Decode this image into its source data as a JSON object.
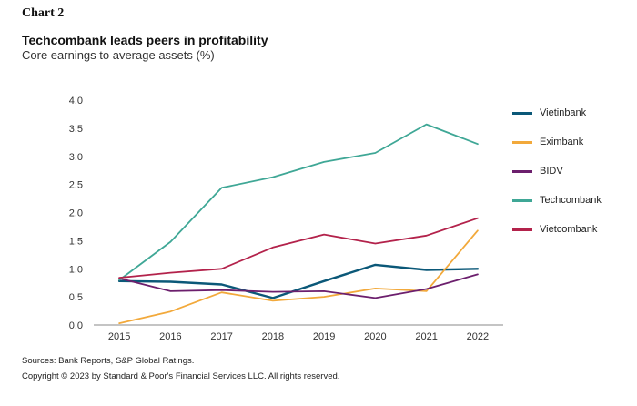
{
  "chart_label": "Chart 2",
  "footer": {
    "sources": "Sources: Bank Reports, S&P Global Ratings.",
    "copyright": "Copyright © 2023 by Standard & Poor's Financial Services LLC. All rights reserved."
  },
  "chart_data": {
    "type": "line",
    "title": "Techcombank leads peers in profitability",
    "subtitle": "Core earnings to average assets (%)",
    "xlabel": "",
    "ylabel": "",
    "x": [
      "2015",
      "2016",
      "2017",
      "2018",
      "2019",
      "2020",
      "2021",
      "2022"
    ],
    "ylim": [
      0,
      4.0
    ],
    "yticks": [
      "0.0",
      "0.5",
      "1.0",
      "1.5",
      "2.0",
      "2.5",
      "3.0",
      "3.5",
      "4.0"
    ],
    "grid": false,
    "legend_position": "right",
    "series": [
      {
        "name": "Vietinbank",
        "color": "#0b5878",
        "values": [
          0.78,
          0.77,
          0.72,
          0.48,
          0.78,
          1.07,
          0.98,
          1.0
        ]
      },
      {
        "name": "Eximbank",
        "color": "#f2a93b",
        "values": [
          0.03,
          0.24,
          0.58,
          0.43,
          0.5,
          0.65,
          0.6,
          1.68
        ]
      },
      {
        "name": "BIDV",
        "color": "#6c1f6d",
        "values": [
          0.83,
          0.6,
          0.62,
          0.59,
          0.6,
          0.48,
          0.64,
          0.9
        ]
      },
      {
        "name": "Techcombank",
        "color": "#3fa796",
        "values": [
          0.8,
          1.48,
          2.44,
          2.63,
          2.9,
          3.06,
          3.57,
          3.22
        ]
      },
      {
        "name": "Vietcombank",
        "color": "#b3224b",
        "values": [
          0.84,
          0.93,
          1.0,
          1.38,
          1.61,
          1.45,
          1.59,
          1.9
        ]
      }
    ]
  }
}
